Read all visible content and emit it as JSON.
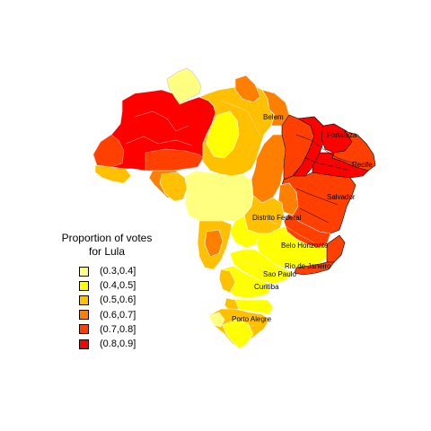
{
  "legend": {
    "title_line1": "Proportion of votes",
    "title_line2": "for Lula",
    "items": [
      {
        "label": "(0.3,0.4]",
        "color": "#ffff80"
      },
      {
        "label": "(0.4,0.5]",
        "color": "#ffff00"
      },
      {
        "label": "(0.5,0.6]",
        "color": "#ffc000"
      },
      {
        "label": "(0.6,0.7]",
        "color": "#ff8000"
      },
      {
        "label": "(0.7,0.8]",
        "color": "#ff4000"
      },
      {
        "label": "(0.8,0.9]",
        "color": "#ff0000"
      }
    ]
  },
  "cities": {
    "belem": "Belem",
    "fortaleza": "Fortaleza",
    "recife": "Recife",
    "salvador": "Salvador",
    "distrito_federal": "Distrito Federal",
    "belo_horizonte": "Belo Horizonte",
    "rio_de_janeiro": "Rio de Janeiro",
    "sao_paulo": "Sao Paulo",
    "curitiba": "Curitiba",
    "porto_alegre": "Porto Alegre"
  }
}
